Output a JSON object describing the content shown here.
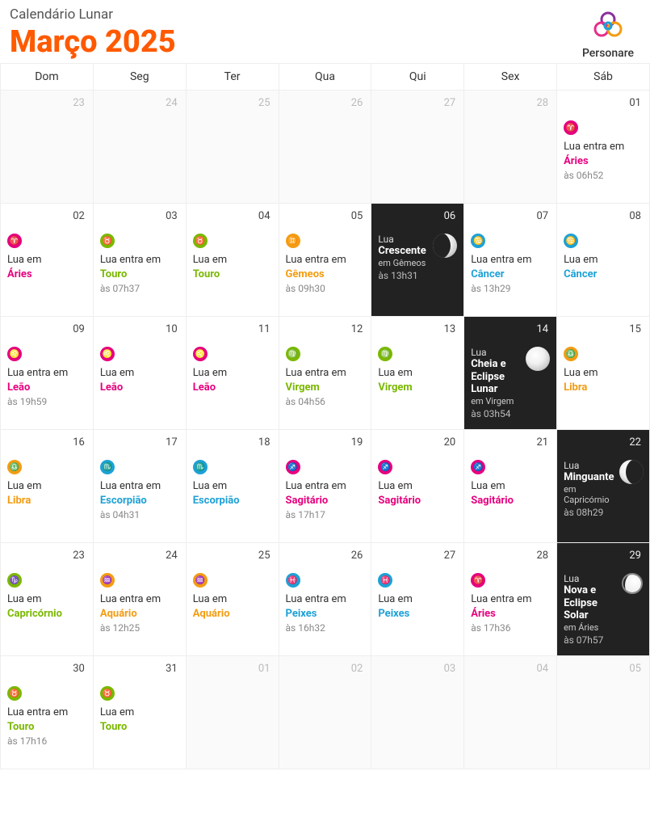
{
  "header": {
    "subtitle": "Calendário Lunar",
    "title": "Março 2025",
    "title_color": "#ff5a00",
    "logo_text": "Personare"
  },
  "dow": [
    "Dom",
    "Seg",
    "Ter",
    "Qua",
    "Qui",
    "Sex",
    "Sáb"
  ],
  "sign_colors": {
    "aries": "#e6007e",
    "touro": "#7ab800",
    "gemeos": "#f39c12",
    "cancer": "#1da1d6",
    "leao": "#e6007e",
    "virgem": "#7ab800",
    "libra": "#f39c12",
    "escorpiao": "#1da1d6",
    "sagitario": "#e6007e",
    "capricornio": "#7ab800",
    "aquario": "#f39c12",
    "peixes": "#1da1d6"
  },
  "sign_glyphs": {
    "aries": "♈",
    "touro": "♉",
    "gemeos": "♊",
    "cancer": "♋",
    "leao": "♌",
    "virgem": "♍",
    "libra": "♎",
    "escorpiao": "♏",
    "sagitario": "♐",
    "capricornio": "♑",
    "aquario": "♒",
    "peixes": "♓"
  },
  "weeks": [
    [
      {
        "day": "23",
        "prev": true
      },
      {
        "day": "24",
        "prev": true
      },
      {
        "day": "25",
        "prev": true
      },
      {
        "day": "26",
        "prev": true
      },
      {
        "day": "27",
        "prev": true
      },
      {
        "day": "28",
        "prev": true
      },
      {
        "day": "01",
        "sign": "aries",
        "action": "Lua entra em",
        "sign_label": "Áries",
        "time": "às 06h52"
      }
    ],
    [
      {
        "day": "02",
        "sign": "aries",
        "action": "Lua em",
        "sign_label": "Áries"
      },
      {
        "day": "03",
        "sign": "touro",
        "action": "Lua entra em",
        "sign_label": "Touro",
        "time": "às 07h37"
      },
      {
        "day": "04",
        "sign": "touro",
        "action": "Lua em",
        "sign_label": "Touro"
      },
      {
        "day": "05",
        "sign": "gemeos",
        "action": "Lua entra em",
        "sign_label": "Gêmeos",
        "time": "às 09h30"
      },
      {
        "day": "06",
        "phase": true,
        "moon": "cres",
        "phase_lbl": "Lua",
        "phase_name": "Crescente",
        "phase_sign": "em Gêmeos",
        "time": "às 13h31"
      },
      {
        "day": "07",
        "sign": "cancer",
        "action": "Lua entra em",
        "sign_label": "Câncer",
        "time": "às 13h29"
      },
      {
        "day": "08",
        "sign": "cancer",
        "action": "Lua em",
        "sign_label": "Câncer"
      }
    ],
    [
      {
        "day": "09",
        "sign": "leao",
        "action": "Lua entra em",
        "sign_label": "Leão",
        "time": "às 19h59"
      },
      {
        "day": "10",
        "sign": "leao",
        "action": "Lua em",
        "sign_label": "Leão"
      },
      {
        "day": "11",
        "sign": "leao",
        "action": "Lua em",
        "sign_label": "Leão"
      },
      {
        "day": "12",
        "sign": "virgem",
        "action": "Lua entra em",
        "sign_label": "Virgem",
        "time": "às 04h56"
      },
      {
        "day": "13",
        "sign": "virgem",
        "action": "Lua em",
        "sign_label": "Virgem"
      },
      {
        "day": "14",
        "phase": true,
        "moon": "cheia",
        "phase_lbl": "Lua",
        "phase_name": "Cheia",
        "phase_extra": " e Eclipse Lunar",
        "phase_sign": "em Virgem",
        "time": "às 03h54"
      },
      {
        "day": "15",
        "sign": "libra",
        "action": "Lua em",
        "sign_label": "Libra"
      }
    ],
    [
      {
        "day": "16",
        "sign": "libra",
        "action": "Lua em",
        "sign_label": "Libra"
      },
      {
        "day": "17",
        "sign": "escorpiao",
        "action": "Lua entra em",
        "sign_label": "Escorpião",
        "time": "às 04h31"
      },
      {
        "day": "18",
        "sign": "escorpiao",
        "action": "Lua em",
        "sign_label": "Escorpião"
      },
      {
        "day": "19",
        "sign": "sagitario",
        "action": "Lua entra em",
        "sign_label": "Sagitário",
        "time": "às 17h17"
      },
      {
        "day": "20",
        "sign": "sagitario",
        "action": "Lua em",
        "sign_label": "Sagitário"
      },
      {
        "day": "21",
        "sign": "sagitario",
        "action": "Lua em",
        "sign_label": "Sagitário"
      },
      {
        "day": "22",
        "phase": true,
        "moon": "ming",
        "phase_lbl": "Lua",
        "phase_name": "Minguante",
        "phase_sign": "em Capricórnio",
        "time": "às 08h29"
      }
    ],
    [
      {
        "day": "23",
        "sign": "capricornio",
        "action": "Lua em",
        "sign_label": "Capricórnio"
      },
      {
        "day": "24",
        "sign": "aquario",
        "action": "Lua entra em",
        "sign_label": "Aquário",
        "time": "às 12h25"
      },
      {
        "day": "25",
        "sign": "aquario",
        "action": "Lua em",
        "sign_label": "Aquário"
      },
      {
        "day": "26",
        "sign": "peixes",
        "action": "Lua entra em",
        "sign_label": "Peixes",
        "time": "às 16h32"
      },
      {
        "day": "27",
        "sign": "peixes",
        "action": "Lua em",
        "sign_label": "Peixes"
      },
      {
        "day": "28",
        "sign": "aries",
        "action": "Lua entra em",
        "sign_label": "Áries",
        "time": "às 17h36"
      },
      {
        "day": "29",
        "phase": true,
        "moon": "nova",
        "phase_lbl": "Lua",
        "phase_name": "Nova",
        "phase_extra": " e Eclipse Solar",
        "phase_sign": "em Áries",
        "time": "às 07h57"
      }
    ],
    [
      {
        "day": "30",
        "sign": "touro",
        "action": "Lua entra em",
        "sign_label": "Touro",
        "time": "às 17h16"
      },
      {
        "day": "31",
        "sign": "touro",
        "action": "Lua em",
        "sign_label": "Touro"
      },
      {
        "day": "01",
        "next": true
      },
      {
        "day": "02",
        "next": true
      },
      {
        "day": "03",
        "next": true
      },
      {
        "day": "04",
        "next": true
      },
      {
        "day": "05",
        "next": true
      }
    ]
  ]
}
